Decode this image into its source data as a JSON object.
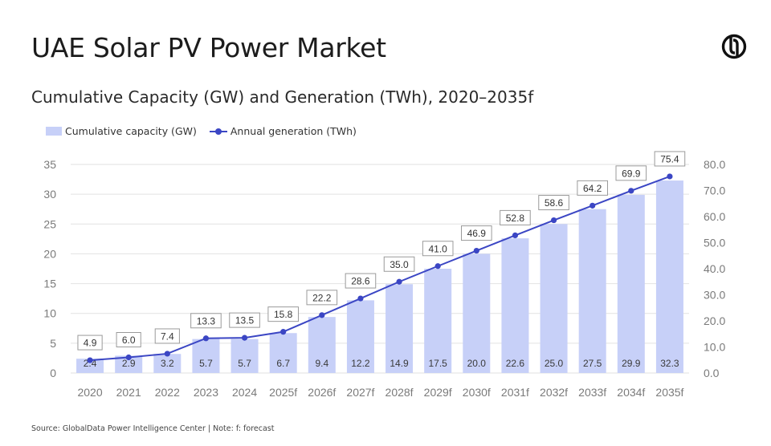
{
  "header": {
    "title": "UAE Solar PV Power Market",
    "subtitle": "Cumulative Capacity (GW) and Generation (TWh), 2020–2035f",
    "logo_icon": "globaldata-logo-icon"
  },
  "legend": {
    "bar_label": "Cumulative capacity (GW)",
    "line_label": "Annual generation (TWh)"
  },
  "footer": {
    "source": "Source: GlobalData Power Intelligence Center | Note: f: forecast"
  },
  "chart_data": {
    "type": "bar",
    "categories": [
      "2020",
      "2021",
      "2022",
      "2023",
      "2024",
      "2025f",
      "2026f",
      "2027f",
      "2028f",
      "2029f",
      "2030f",
      "2031f",
      "2032f",
      "2033f",
      "2034f",
      "2035f"
    ],
    "series": [
      {
        "name": "Cumulative capacity (GW)",
        "type": "bar",
        "axis": "left",
        "color": "#c7d0f8",
        "values": [
          2.4,
          2.9,
          3.2,
          5.7,
          5.7,
          6.7,
          9.4,
          12.2,
          14.9,
          17.5,
          20.0,
          22.6,
          25.0,
          27.5,
          29.9,
          32.3
        ],
        "labels": [
          "2.4",
          "2.9",
          "3.2",
          "5.7",
          "5.7",
          "6.7",
          "9.4",
          "12.2",
          "14.9",
          "17.5",
          "20.0",
          "22.6",
          "25.0",
          "27.5",
          "29.9",
          "32.3"
        ]
      },
      {
        "name": "Annual generation (TWh)",
        "type": "line",
        "axis": "right",
        "color": "#3b46c4",
        "values": [
          4.9,
          6.0,
          7.4,
          13.3,
          13.5,
          15.8,
          22.2,
          28.6,
          35.0,
          41.0,
          46.9,
          52.8,
          58.6,
          64.2,
          69.9,
          75.4
        ],
        "labels": [
          "4.9",
          "6.0",
          "7.4",
          "13.3",
          "13.5",
          "15.8",
          "22.2",
          "28.6",
          "35.0",
          "41.0",
          "46.9",
          "52.8",
          "58.6",
          "64.2",
          "69.9",
          "75.4"
        ]
      }
    ],
    "y_left": {
      "ylim": [
        0,
        35
      ],
      "ticks": [
        "0",
        "5",
        "10",
        "15",
        "20",
        "25",
        "30",
        "35"
      ]
    },
    "y_right": {
      "ylim": [
        0,
        80
      ],
      "ticks": [
        "0.0",
        "10.0",
        "20.0",
        "30.0",
        "40.0",
        "50.0",
        "60.0",
        "70.0",
        "80.0"
      ]
    },
    "grid": true,
    "legend_position": "top-left"
  }
}
